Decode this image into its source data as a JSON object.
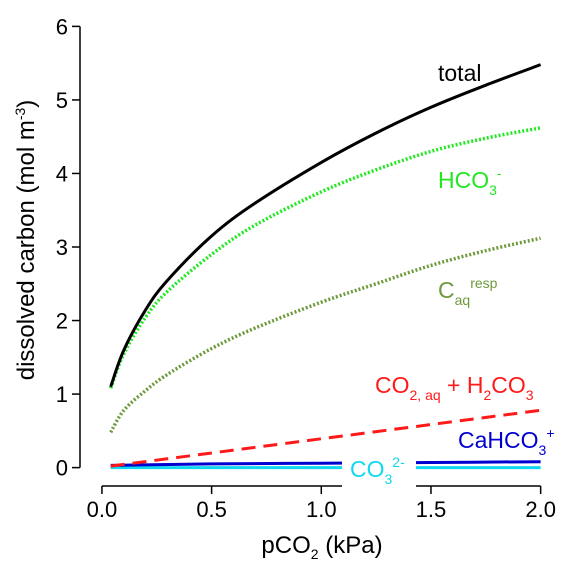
{
  "chart_data": {
    "type": "line",
    "title": "",
    "xlabel": {
      "main": "pCO",
      "sub": "2",
      "rest": " (kPa)"
    },
    "ylabel": {
      "main": "dissolved carbon (mol m",
      "sup": "-3",
      "rest": ")"
    },
    "xlim": [
      0.0,
      2.0
    ],
    "ylim": [
      0,
      6
    ],
    "xticks": [
      "0.0",
      "0.5",
      "1.0",
      "1.5",
      "2.0"
    ],
    "yticks": [
      "0",
      "1",
      "2",
      "3",
      "4",
      "5",
      "6"
    ],
    "grid": false,
    "legend": "inline labels",
    "series": [
      {
        "name": "total",
        "label": {
          "main": "total"
        },
        "color": "#000000",
        "style": "solid",
        "x": [
          0.04,
          0.1,
          0.2,
          0.3,
          0.5,
          0.7,
          1.0,
          1.25,
          1.5,
          1.75,
          2.0
        ],
        "y": [
          1.1,
          1.6,
          2.15,
          2.55,
          3.15,
          3.6,
          4.15,
          4.55,
          4.9,
          5.2,
          5.48
        ]
      },
      {
        "name": "HCO3-",
        "label": {
          "main": "HCO",
          "sub": "3",
          "sup": "-"
        },
        "color": "#22e822",
        "style": "dotted",
        "x": [
          0.04,
          0.1,
          0.2,
          0.3,
          0.5,
          0.7,
          1.0,
          1.25,
          1.5,
          1.75,
          2.0
        ],
        "y": [
          1.08,
          1.55,
          2.05,
          2.4,
          2.9,
          3.3,
          3.75,
          4.05,
          4.3,
          4.48,
          4.62
        ]
      },
      {
        "name": "Caq resp",
        "label": {
          "main": "C",
          "sub": "aq",
          "sup": "resp"
        },
        "color": "#6e9a3c",
        "style": "dotted",
        "x": [
          0.04,
          0.1,
          0.2,
          0.3,
          0.5,
          0.7,
          1.0,
          1.25,
          1.5,
          1.75,
          2.0
        ],
        "y": [
          0.48,
          0.78,
          1.05,
          1.27,
          1.62,
          1.9,
          2.25,
          2.5,
          2.75,
          2.95,
          3.12
        ]
      },
      {
        "name": "CO2, aq + H2CO3",
        "label": {
          "main": "CO",
          "sub": "2, aq",
          "rest": " + H",
          "sub2": "2",
          "rest2": "CO",
          "sub3": "3"
        },
        "color": "#ff1a1a",
        "style": "dashed",
        "x": [
          0.04,
          2.0
        ],
        "y": [
          0.02,
          0.78
        ]
      },
      {
        "name": "CaHCO3+",
        "label": {
          "main": "CaHCO",
          "sub": "3",
          "sup": "+"
        },
        "color": "#0000d0",
        "style": "solid",
        "x": [
          0.04,
          0.5,
          1.0,
          1.5,
          2.0
        ],
        "y": [
          0.03,
          0.05,
          0.06,
          0.07,
          0.08
        ]
      },
      {
        "name": "CO3 2-",
        "label": {
          "main": "CO",
          "sub": "3",
          "sup": "2-"
        },
        "color": "#10d8f0",
        "style": "solid",
        "x": [
          0.04,
          2.0
        ],
        "y": [
          0.0,
          0.0
        ]
      }
    ]
  }
}
